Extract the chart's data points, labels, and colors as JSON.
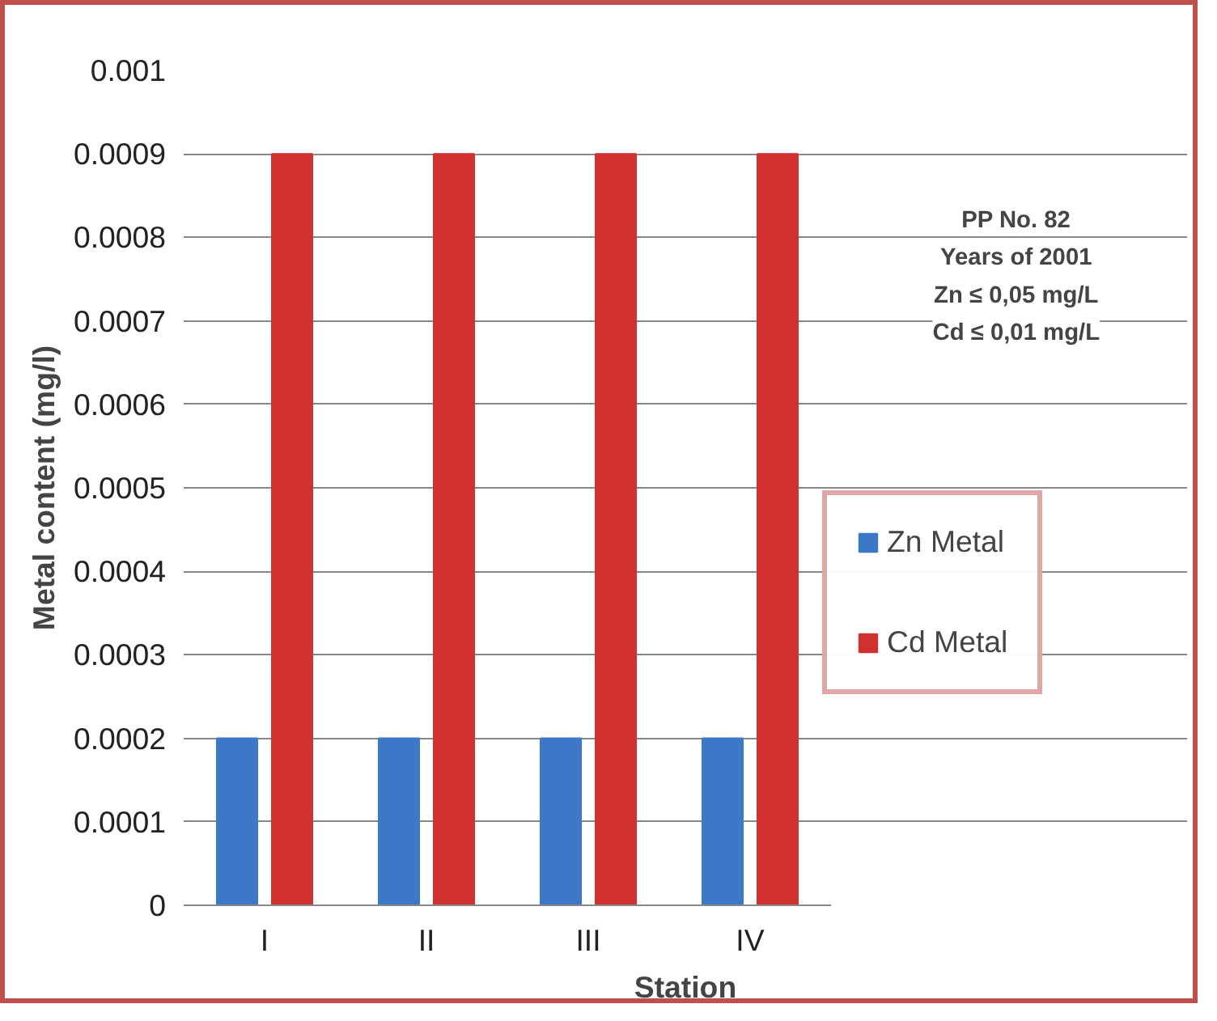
{
  "chart_data": {
    "type": "bar",
    "xlabel": "Station",
    "ylabel": "Metal content (mg/l)",
    "categories": [
      "I",
      "II",
      "III",
      "IV"
    ],
    "series": [
      {
        "name": "Zn Metal",
        "color": "#3c78c8",
        "values": [
          0.0002,
          0.0002,
          0.0002,
          0.0002
        ]
      },
      {
        "name": "Cd Metal",
        "color": "#d03030",
        "values": [
          0.0009,
          0.0009,
          0.0009,
          0.0009
        ]
      }
    ],
    "ylim": [
      0,
      0.001
    ],
    "yticks": [
      0,
      0.0001,
      0.0002,
      0.0003,
      0.0004,
      0.0005,
      0.0006,
      0.0007,
      0.0008,
      0.0009,
      0.001
    ],
    "grid": "y",
    "legend": "right",
    "annotations": [
      "PP No. 82",
      "Years of 2001",
      "Zn ≤ 0,05 mg/L",
      "Cd ≤ 0,01 mg/L"
    ]
  }
}
